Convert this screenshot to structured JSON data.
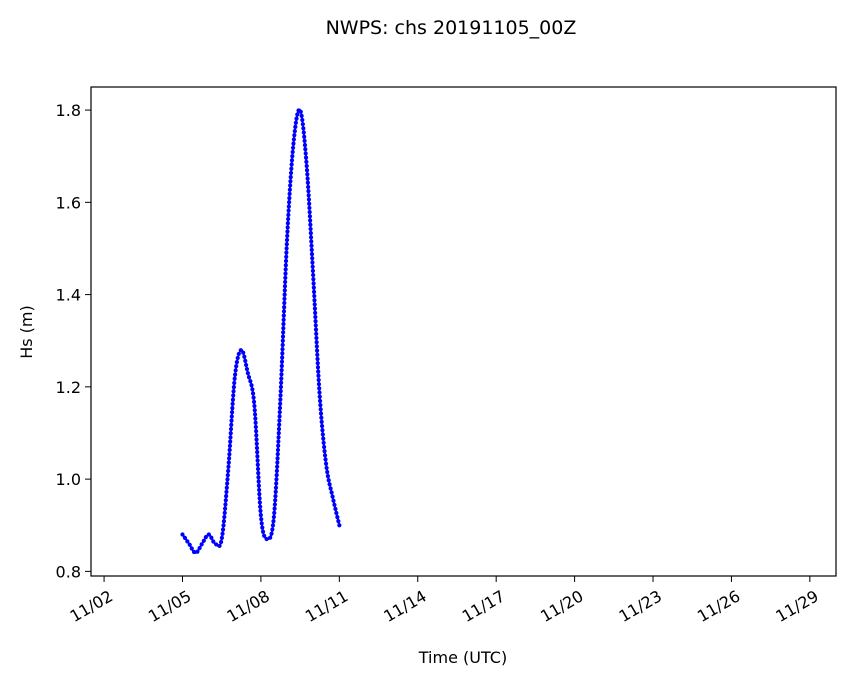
{
  "chart_data": {
    "type": "line",
    "title": "NWPS: chs 20191105_00Z",
    "xlabel": "Time (UTC)",
    "ylabel": "Hs (m)",
    "x_unit": "date (Nov 2019)",
    "xlim": [
      "2019-11-01T12:00",
      "2019-11-30T00:00"
    ],
    "ylim": [
      0.79,
      1.85
    ],
    "x_ticks": [
      {
        "date": "2019-11-02",
        "label": "11/02"
      },
      {
        "date": "2019-11-05",
        "label": "11/05"
      },
      {
        "date": "2019-11-08",
        "label": "11/08"
      },
      {
        "date": "2019-11-11",
        "label": "11/11"
      },
      {
        "date": "2019-11-14",
        "label": "11/14"
      },
      {
        "date": "2019-11-17",
        "label": "11/17"
      },
      {
        "date": "2019-11-20",
        "label": "11/20"
      },
      {
        "date": "2019-11-23",
        "label": "11/23"
      },
      {
        "date": "2019-11-26",
        "label": "11/26"
      },
      {
        "date": "2019-11-29",
        "label": "11/29"
      }
    ],
    "y_ticks": [
      {
        "value": 0.8,
        "label": "0.8"
      },
      {
        "value": 1.0,
        "label": "1.0"
      },
      {
        "value": 1.2,
        "label": "1.2"
      },
      {
        "value": 1.4,
        "label": "1.4"
      },
      {
        "value": 1.6,
        "label": "1.6"
      },
      {
        "value": 1.8,
        "label": "1.8"
      }
    ],
    "grid": false,
    "legend": "none",
    "series": [
      {
        "color": "#0000ff",
        "marker": "dot",
        "x": [
          "2019-11-05T00:00",
          "2019-11-05T06:00",
          "2019-11-05T12:00",
          "2019-11-05T18:00",
          "2019-11-06T00:00",
          "2019-11-06T06:00",
          "2019-11-06T12:00",
          "2019-11-06T18:00",
          "2019-11-07T00:00",
          "2019-11-07T06:00",
          "2019-11-07T12:00",
          "2019-11-07T18:00",
          "2019-11-08T00:00",
          "2019-11-08T06:00",
          "2019-11-08T12:00",
          "2019-11-08T18:00",
          "2019-11-09T00:00",
          "2019-11-09T06:00",
          "2019-11-09T12:00",
          "2019-11-09T18:00",
          "2019-11-10T00:00",
          "2019-11-10T06:00",
          "2019-11-10T12:00",
          "2019-11-10T18:00",
          "2019-11-11T00:00"
        ],
        "y": [
          0.88,
          0.86,
          0.84,
          0.86,
          0.88,
          0.86,
          0.87,
          1.02,
          1.22,
          1.28,
          1.23,
          1.16,
          0.92,
          0.87,
          0.92,
          1.18,
          1.52,
          1.73,
          1.8,
          1.68,
          1.44,
          1.18,
          1.03,
          0.96,
          0.9
        ]
      }
    ]
  }
}
